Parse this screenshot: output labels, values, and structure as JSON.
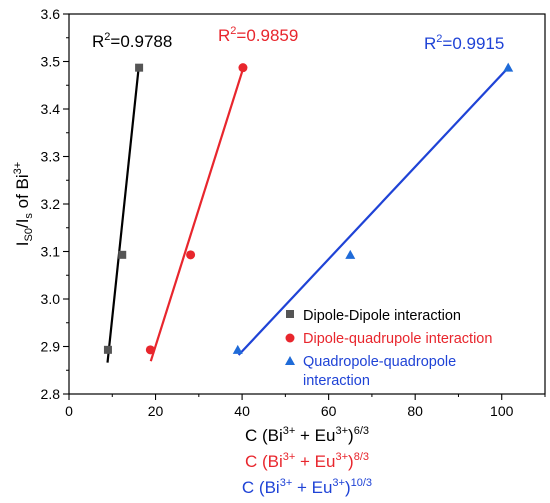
{
  "chart_data": {
    "type": "scatter",
    "xlim": [
      0,
      110
    ],
    "ylim": [
      2.8,
      3.6
    ],
    "x_ticks": [
      0,
      20,
      40,
      60,
      80,
      100
    ],
    "y_ticks": [
      2.8,
      2.9,
      3.0,
      3.1,
      3.2,
      3.3,
      3.4,
      3.5,
      3.6
    ],
    "x_tick_labels": [
      "0",
      "20",
      "40",
      "60",
      "80",
      "100"
    ],
    "y_tick_labels": [
      "2.8",
      "2.9",
      "3.0",
      "3.1",
      "3.2",
      "3.3",
      "3.4",
      "3.5",
      "3.6"
    ],
    "grid": false,
    "legend_position": "bottom-right",
    "ylabel": {
      "main": "I",
      "sub1": "S0",
      "mid": "/I",
      "sub2": "s",
      "tail": " of Bi",
      "sup": "3+"
    },
    "xlabels": [
      {
        "pre": "C (Bi",
        "sup1": "3+",
        "mid": " + Eu",
        "sup2": "3+",
        "close": ")",
        "sup3": "6/3",
        "color": "#000000"
      },
      {
        "pre": "C (Bi",
        "sup1": "3+",
        "mid": " + Eu",
        "sup2": "3+",
        "close": ")",
        "sup3": "8/3",
        "color": "#e8262d"
      },
      {
        "pre": "C (Bi",
        "sup1": "3+",
        "mid": " + Eu",
        "sup2": "3+",
        "close": ")",
        "sup3": "10/3",
        "color": "#1f43d6"
      }
    ],
    "series": [
      {
        "name": "Dipole-Dipole interaction",
        "legend_lines": [
          "Dipole-Dipole interaction"
        ],
        "marker": "square",
        "color": "#555555",
        "line_color": "#000000",
        "x": [
          9,
          12.3,
          16.2
        ],
        "y": [
          2.893,
          3.093,
          3.487
        ],
        "fit_x": [
          8.9,
          16.1
        ],
        "fit_y": [
          2.866,
          3.487
        ],
        "r2_label": "R",
        "r2_sup": "2",
        "r2_value": "=0.9788",
        "r2_color": "#000000"
      },
      {
        "name": "Dipole-quadrupole interaction",
        "legend_lines": [
          "Dipole-quadrupole interaction"
        ],
        "marker": "circle",
        "color": "#e8262d",
        "line_color": "#e8262d",
        "x": [
          18.8,
          28.1,
          40.2
        ],
        "y": [
          2.893,
          3.093,
          3.487
        ],
        "fit_x": [
          18.9,
          40.3
        ],
        "fit_y": [
          2.869,
          3.487
        ],
        "r2_label": "R",
        "r2_sup": "2",
        "r2_value": "=0.9859",
        "r2_color": "#e8262d"
      },
      {
        "name": "Quadropole-quadropole interaction",
        "legend_lines": [
          "Quadropole-quadropole",
          "interaction"
        ],
        "marker": "triangle",
        "color": "#1f6bd8",
        "line_color": "#1f43d6",
        "x": [
          39.0,
          65.0,
          101.5
        ],
        "y": [
          2.893,
          3.093,
          3.487
        ],
        "fit_x": [
          39.2,
          101.5
        ],
        "fit_y": [
          2.882,
          3.487
        ],
        "r2_label": "R",
        "r2_sup": "2",
        "r2_value": "=0.9915",
        "r2_color": "#1f43d6"
      }
    ]
  }
}
